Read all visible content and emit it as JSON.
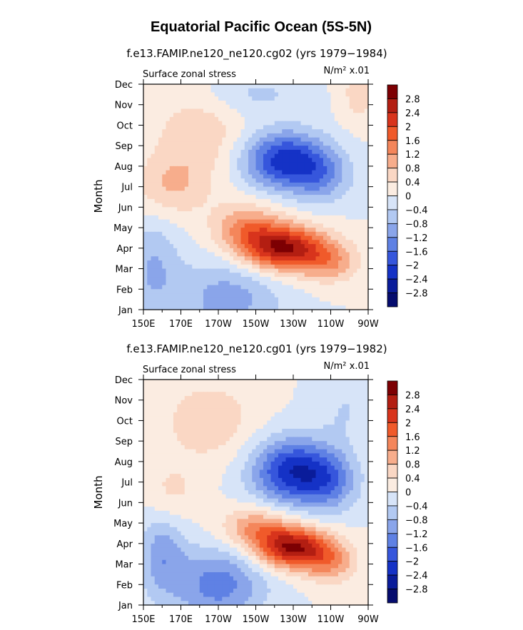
{
  "figure": {
    "title": "Equatorial Pacific Ocean (5S-5N)"
  },
  "chart_data": [
    {
      "type": "heatmap",
      "title": "f.e13.FAMIP.ne120_ne120.cg02 (yrs 1979−1984)",
      "left_label": "Surface zonal stress",
      "right_label": "N/m² x.01",
      "ylabel": "Month",
      "xlabel": "",
      "x_ticks": [
        "150E",
        "170E",
        "170W",
        "150W",
        "130W",
        "110W",
        "90W"
      ],
      "y_ticks": [
        "Jan",
        "Feb",
        "Mar",
        "Apr",
        "May",
        "Jun",
        "Jul",
        "Aug",
        "Sep",
        "Oct",
        "Nov",
        "Dec"
      ],
      "levels": [
        "2.8",
        "2.4",
        "2",
        "1.6",
        "1.2",
        "0.8",
        "0.4",
        "0",
        "−0.4",
        "−0.8",
        "−1.2",
        "−1.6",
        "−2",
        "−2.4",
        "−2.8"
      ],
      "lon_range": [
        150,
        270
      ],
      "month_range": [
        1,
        12
      ],
      "features": [
        {
          "lon": 195,
          "month": 1.5,
          "value": -1.0,
          "sx": 28,
          "sy": 2.0
        },
        {
          "lon": 155,
          "month": 3.0,
          "value": -0.8,
          "sx": 14,
          "sy": 2.5
        },
        {
          "lon": 180,
          "month": 9.5,
          "value": 0.7,
          "sx": 25,
          "sy": 2.0
        },
        {
          "lon": 165,
          "month": 7.0,
          "value": 0.8,
          "sx": 20,
          "sy": 1.5
        },
        {
          "lon": 225,
          "month": 4.0,
          "value": 2.8,
          "sx": 22,
          "sy": 1.1
        },
        {
          "lon": 205,
          "month": 5.0,
          "value": 1.2,
          "sx": 18,
          "sy": 1.2
        },
        {
          "lon": 250,
          "month": 3.3,
          "value": 1.0,
          "sx": 16,
          "sy": 1.0
        },
        {
          "lon": 225,
          "month": 8.3,
          "value": -2.2,
          "sx": 22,
          "sy": 1.4
        },
        {
          "lon": 245,
          "month": 7.5,
          "value": -1.0,
          "sx": 16,
          "sy": 1.3
        },
        {
          "lon": 210,
          "month": 11.5,
          "value": -0.5,
          "sx": 25,
          "sy": 1.0
        },
        {
          "lon": 265,
          "month": 11.5,
          "value": 0.6,
          "sx": 10,
          "sy": 1.5
        }
      ]
    },
    {
      "type": "heatmap",
      "title": "f.e13.FAMIP.ne120_ne120.cg01 (yrs 1979−1982)",
      "left_label": "Surface zonal stress",
      "right_label": "N/m² x.01",
      "ylabel": "Month",
      "xlabel": "",
      "x_ticks": [
        "150E",
        "170E",
        "170W",
        "150W",
        "130W",
        "110W",
        "90W"
      ],
      "y_ticks": [
        "Jan",
        "Feb",
        "Mar",
        "Apr",
        "May",
        "Jun",
        "Jul",
        "Aug",
        "Sep",
        "Oct",
        "Nov",
        "Dec"
      ],
      "levels": [
        "2.8",
        "2.4",
        "2",
        "1.6",
        "1.2",
        "0.8",
        "0.4",
        "0",
        "−0.4",
        "−0.8",
        "−1.2",
        "−1.6",
        "−2",
        "−2.4",
        "−2.8"
      ],
      "lon_range": [
        150,
        270
      ],
      "month_range": [
        1,
        12
      ],
      "features": [
        {
          "lon": 190,
          "month": 2.0,
          "value": -1.4,
          "sx": 25,
          "sy": 1.8
        },
        {
          "lon": 160,
          "month": 3.5,
          "value": -1.0,
          "sx": 12,
          "sy": 2.0
        },
        {
          "lon": 185,
          "month": 10.0,
          "value": 0.7,
          "sx": 25,
          "sy": 2.0
        },
        {
          "lon": 165,
          "month": 6.5,
          "value": 0.5,
          "sx": 15,
          "sy": 1.5
        },
        {
          "lon": 230,
          "month": 3.8,
          "value": 2.8,
          "sx": 20,
          "sy": 1.0
        },
        {
          "lon": 210,
          "month": 4.8,
          "value": 1.2,
          "sx": 18,
          "sy": 1.0
        },
        {
          "lon": 250,
          "month": 3.0,
          "value": 1.0,
          "sx": 14,
          "sy": 1.0
        },
        {
          "lon": 230,
          "month": 7.5,
          "value": -2.3,
          "sx": 22,
          "sy": 1.6
        },
        {
          "lon": 250,
          "month": 7.0,
          "value": -1.0,
          "sx": 15,
          "sy": 1.5
        },
        {
          "lon": 258,
          "month": 10.5,
          "value": -0.4,
          "sx": 15,
          "sy": 1.5
        }
      ]
    }
  ],
  "colors": {
    "levels": [
      "#7d0003",
      "#b31e12",
      "#d8341c",
      "#f05a2a",
      "#f4865b",
      "#f7ad8c",
      "#fad7c4",
      "#fbece1",
      "#d7e4f8",
      "#b2c9f2",
      "#8aa5ea",
      "#5f81e4",
      "#3656dc",
      "#1532c6",
      "#0a1c9a",
      "#050c6e"
    ]
  }
}
